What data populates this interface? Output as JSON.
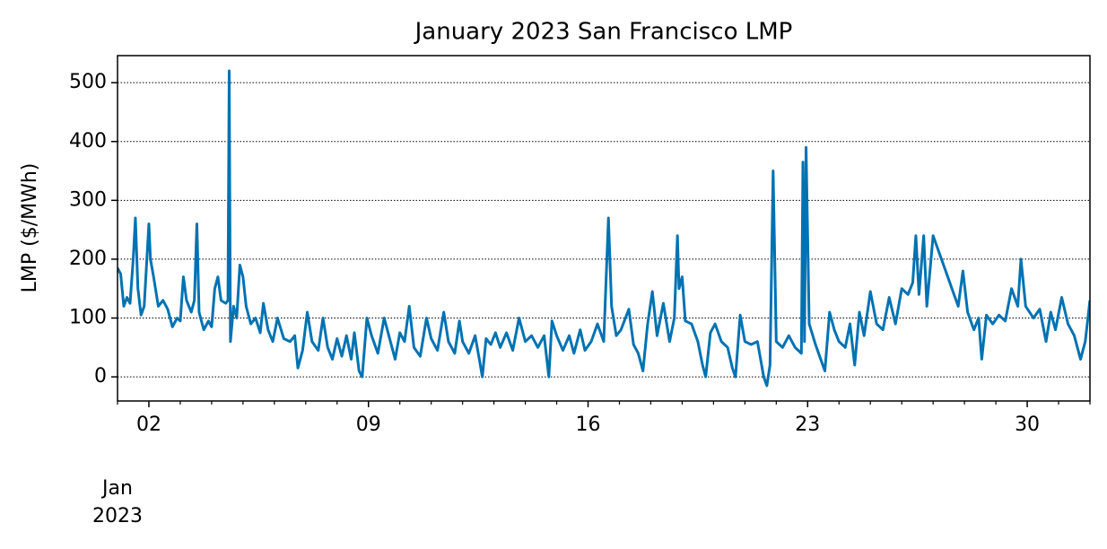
{
  "chart_data": {
    "type": "line",
    "title": "January 2023 San Francisco LMP",
    "y_label": "LMP ($/MWh)",
    "x_offset_label": [
      "Jan",
      "2023"
    ],
    "xlim": [
      1,
      32
    ],
    "xticks": [
      {
        "value": 2,
        "label": "02"
      },
      {
        "value": 9,
        "label": "09"
      },
      16,
      23,
      30
    ],
    "xminorticks": [
      1,
      3,
      4,
      5,
      6,
      7,
      8,
      10,
      11,
      12,
      13,
      14,
      15,
      17,
      18,
      19,
      20,
      21,
      22,
      24,
      25,
      26,
      27,
      28,
      29,
      31,
      32
    ],
    "ylim": [
      -41,
      546
    ],
    "yticks": [
      0,
      100,
      200,
      300,
      400,
      500
    ],
    "grid": true,
    "series": [
      {
        "color": "#0072b2",
        "x": [
          1.0,
          1.1,
          1.2,
          1.3,
          1.4,
          1.5,
          1.57,
          1.65,
          1.75,
          1.85,
          2.0,
          2.05,
          2.15,
          2.3,
          2.45,
          2.6,
          2.75,
          2.9,
          3.0,
          3.1,
          3.2,
          3.35,
          3.45,
          3.53,
          3.6,
          3.75,
          3.9,
          4.0,
          4.1,
          4.2,
          4.3,
          4.45,
          4.52,
          4.56,
          4.6,
          4.7,
          4.8,
          4.9,
          5.0,
          5.1,
          5.25,
          5.4,
          5.55,
          5.65,
          5.8,
          5.95,
          6.1,
          6.3,
          6.5,
          6.65,
          6.75,
          6.9,
          7.05,
          7.2,
          7.4,
          7.55,
          7.7,
          7.85,
          8.0,
          8.15,
          8.3,
          8.45,
          8.55,
          8.7,
          8.8,
          8.95,
          9.1,
          9.3,
          9.5,
          9.7,
          9.85,
          10.0,
          10.15,
          10.3,
          10.45,
          10.65,
          10.85,
          11.0,
          11.2,
          11.4,
          11.55,
          11.75,
          11.9,
          12.0,
          12.2,
          12.4,
          12.55,
          12.63,
          12.75,
          12.9,
          13.05,
          13.2,
          13.4,
          13.6,
          13.8,
          14.0,
          14.2,
          14.4,
          14.6,
          14.75,
          14.85,
          15.0,
          15.2,
          15.4,
          15.55,
          15.75,
          15.9,
          16.1,
          16.3,
          16.5,
          16.65,
          16.75,
          16.9,
          17.05,
          17.3,
          17.45,
          17.6,
          17.75,
          17.9,
          18.05,
          18.2,
          18.4,
          18.6,
          18.75,
          18.85,
          18.9,
          19.0,
          19.1,
          19.3,
          19.5,
          19.65,
          19.75,
          19.9,
          20.05,
          20.25,
          20.45,
          20.6,
          20.7,
          20.85,
          21.0,
          21.2,
          21.4,
          21.6,
          21.7,
          21.8,
          21.9,
          22.0,
          22.2,
          22.4,
          22.6,
          22.8,
          22.85,
          22.9,
          22.95,
          23.05,
          23.25,
          23.45,
          23.55,
          23.7,
          23.85,
          24.0,
          24.2,
          24.35,
          24.5,
          24.65,
          24.8,
          25.0,
          25.2,
          25.4,
          25.6,
          25.8,
          26.0,
          26.2,
          26.35,
          26.45,
          26.55,
          26.7,
          26.8,
          27.0,
          27.2,
          27.4,
          27.6,
          27.8,
          27.95,
          28.1,
          28.3,
          28.45,
          28.55,
          28.7,
          28.9,
          29.1,
          29.3,
          29.5,
          29.7,
          29.8,
          29.95,
          30.2,
          30.4,
          30.6,
          30.75,
          30.9,
          31.1,
          31.3,
          31.5,
          31.7,
          31.85,
          32.0
        ],
        "values": [
          185,
          175,
          120,
          135,
          125,
          200,
          270,
          150,
          105,
          120,
          260,
          200,
          170,
          120,
          130,
          115,
          85,
          100,
          95,
          170,
          130,
          110,
          130,
          260,
          110,
          80,
          95,
          85,
          150,
          170,
          130,
          125,
          130,
          520,
          60,
          120,
          100,
          190,
          170,
          120,
          90,
          100,
          75,
          125,
          80,
          60,
          100,
          65,
          60,
          70,
          15,
          45,
          110,
          60,
          45,
          100,
          50,
          30,
          65,
          35,
          70,
          30,
          75,
          10,
          0,
          100,
          70,
          40,
          100,
          60,
          30,
          75,
          60,
          120,
          50,
          35,
          100,
          65,
          45,
          110,
          60,
          40,
          95,
          60,
          40,
          70,
          25,
          0,
          65,
          55,
          75,
          50,
          75,
          45,
          100,
          60,
          70,
          50,
          70,
          0,
          95,
          70,
          45,
          70,
          40,
          80,
          45,
          60,
          90,
          60,
          270,
          120,
          70,
          80,
          115,
          55,
          40,
          10,
          90,
          145,
          70,
          125,
          60,
          100,
          240,
          150,
          170,
          95,
          90,
          60,
          20,
          0,
          75,
          90,
          60,
          50,
          15,
          0,
          105,
          60,
          55,
          60,
          0,
          -15,
          20,
          350,
          60,
          50,
          70,
          50,
          40,
          365,
          60,
          390,
          90,
          55,
          25,
          10,
          110,
          80,
          60,
          50,
          90,
          20,
          110,
          70,
          145,
          90,
          80,
          135,
          90,
          150,
          140,
          160,
          240,
          140,
          240,
          120,
          240,
          210,
          180,
          150,
          120,
          180,
          110,
          80,
          100,
          30,
          105,
          90,
          105,
          95,
          150,
          120,
          200,
          120,
          100,
          115,
          60,
          110,
          80,
          135,
          90,
          70,
          30,
          60,
          130
        ]
      }
    ]
  }
}
